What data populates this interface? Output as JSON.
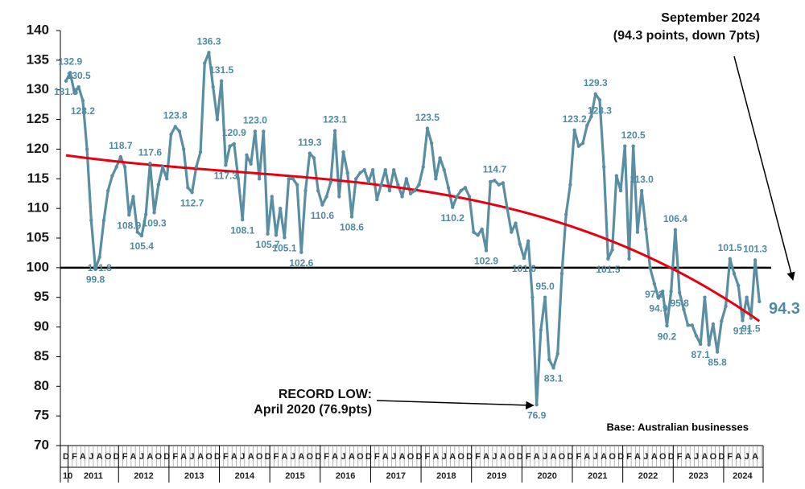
{
  "chart_data": {
    "type": "line",
    "annotations": {
      "latest": [
        "September 2024",
        "(94.3 points, down 7pts)"
      ],
      "record_low": [
        "RECORD LOW:",
        "April 2020 (76.9pts)"
      ],
      "base": "Base: Australian businesses"
    },
    "categories": [
      "D",
      null,
      "F",
      null,
      "A",
      null,
      "J",
      null,
      "A",
      null,
      "O",
      null,
      "D",
      null,
      "F",
      null,
      "A",
      null,
      "J",
      null,
      "A",
      null,
      "O",
      null,
      "D",
      null,
      "F",
      null,
      "A",
      null,
      "J",
      null,
      "A",
      null,
      "O",
      null,
      "D",
      null,
      "F",
      null,
      "A",
      null,
      "J",
      null,
      "A",
      null,
      "O",
      null,
      "D",
      null,
      "F",
      null,
      "A",
      null,
      "J",
      null,
      "A",
      null,
      "O",
      null,
      "D",
      null,
      "F",
      null,
      "A",
      null,
      "J",
      null,
      "A",
      null,
      "O",
      null,
      "D",
      null,
      "F",
      null,
      "A",
      null,
      "J",
      null,
      "A",
      null,
      "O",
      null,
      "D",
      null,
      "F",
      null,
      "A",
      null,
      "J",
      null,
      "A",
      null,
      "O",
      null,
      "D",
      null,
      "F",
      null,
      "A",
      null,
      "J",
      null,
      "A",
      null,
      "O",
      null,
      "D",
      null,
      "F",
      null,
      "A",
      null,
      "J",
      null,
      "A",
      null,
      "O",
      null,
      "D",
      null,
      "F",
      null,
      "A",
      null,
      "J",
      null,
      "A",
      null,
      "O",
      null,
      "D",
      null,
      "F",
      null,
      "A",
      null,
      "J",
      null,
      "A",
      null,
      "O",
      null,
      "D",
      null,
      "F",
      null,
      "A",
      null,
      "J",
      null,
      "A",
      null,
      "O",
      null,
      "D",
      null,
      "F",
      null,
      "A",
      null,
      "J",
      null,
      "A",
      null
    ],
    "year_labels": [
      "10",
      "2011",
      "2012",
      "2013",
      "2014",
      "2015",
      "2016",
      "2017",
      "2018",
      "2019",
      "2020",
      "2021",
      "2022",
      "2023",
      "2024"
    ],
    "values": [
      131.5,
      132.9,
      129.5,
      130.5,
      128.2,
      120,
      108,
      99.8,
      101.8,
      108,
      113,
      115.5,
      117,
      118.7,
      117,
      108.9,
      112,
      106,
      105.4,
      109,
      117.6,
      109.3,
      114,
      117,
      115,
      122.5,
      123.8,
      123,
      120,
      113.5,
      112.7,
      117,
      119.5,
      134.5,
      136.3,
      130.5,
      125,
      131.5,
      117.3,
      120.5,
      120.9,
      115,
      108.1,
      119,
      117.5,
      123,
      115,
      123,
      105.7,
      112,
      105.5,
      110,
      105.1,
      115,
      115,
      114,
      102.6,
      113,
      119.3,
      118.5,
      113,
      110.6,
      112,
      114.5,
      123.1,
      112,
      119.5,
      116,
      108.6,
      115,
      116,
      116.5,
      114.5,
      116.5,
      111.5,
      114,
      116.5,
      113,
      116.5,
      114,
      112,
      115,
      112.5,
      113,
      114,
      117,
      123.5,
      121,
      115,
      118.5,
      116.5,
      113.5,
      110.2,
      112,
      113,
      113.5,
      112,
      106,
      105.5,
      106.5,
      102.9,
      114.5,
      114.7,
      114,
      114.3,
      110,
      106,
      107.5,
      104,
      101.6,
      104.5,
      95,
      76.9,
      89.5,
      95,
      84.5,
      83.1,
      85.5,
      99,
      109,
      114,
      123.2,
      120.5,
      121,
      124,
      125.5,
      129.3,
      128.3,
      117,
      101.5,
      103,
      115.5,
      113,
      120.5,
      101.5,
      120.5,
      106,
      113,
      106.5,
      100,
      97.3,
      94.9,
      96,
      90.2,
      96,
      106.4,
      95.8,
      93,
      90.3,
      90.3,
      88.5,
      87.1,
      95,
      87,
      90.5,
      85.8,
      91,
      93.5,
      101.5,
      99,
      97,
      91.1,
      95,
      91.5,
      101.3,
      94.3
    ],
    "value_labels": [
      "131.5",
      "132.9",
      null,
      "130.5",
      "128.2",
      null,
      null,
      "99.8",
      "101.8",
      null,
      null,
      null,
      null,
      "118.7",
      null,
      "108.9",
      null,
      null,
      "105.4",
      null,
      "117.6",
      "109.3",
      null,
      null,
      null,
      null,
      "123.8",
      null,
      null,
      null,
      "112.7",
      null,
      null,
      null,
      "136.3",
      null,
      null,
      "131.5",
      "117.3",
      null,
      "120.9",
      null,
      "108.1",
      null,
      null,
      "123.0",
      null,
      null,
      "105.7",
      null,
      null,
      null,
      "105.1",
      null,
      null,
      null,
      "102.6",
      null,
      "119.3",
      null,
      null,
      "110.6",
      null,
      null,
      "123.1",
      null,
      null,
      null,
      "108.6",
      null,
      null,
      null,
      null,
      null,
      null,
      null,
      null,
      null,
      null,
      null,
      null,
      null,
      null,
      null,
      null,
      null,
      "123.5",
      null,
      null,
      null,
      null,
      null,
      "110.2",
      null,
      null,
      null,
      null,
      null,
      null,
      null,
      "102.9",
      null,
      "114.7",
      null,
      null,
      null,
      null,
      null,
      null,
      "101.6",
      null,
      null,
      "76.9",
      null,
      "95.0",
      null,
      "83.1",
      null,
      null,
      null,
      null,
      "123.2",
      null,
      null,
      null,
      null,
      "129.3",
      "128.3",
      null,
      "101.5",
      null,
      null,
      null,
      null,
      null,
      "120.5",
      null,
      "113.0",
      null,
      null,
      "97.3",
      "94.9",
      null,
      "90.2",
      null,
      "106.4",
      "95.8",
      null,
      null,
      null,
      null,
      "87.1",
      null,
      null,
      null,
      "85.8",
      null,
      null,
      "101.5",
      null,
      null,
      "91.1",
      null,
      "91.5",
      "101.3",
      "94.3"
    ],
    "color": "#5a8ea3",
    "trend_color": "#e60012",
    "trend": true,
    "reference_line": 100,
    "ylim": [
      70,
      140
    ],
    "yticks": [
      70,
      75,
      80,
      85,
      90,
      95,
      100,
      105,
      110,
      115,
      120,
      125,
      130,
      135,
      140
    ]
  }
}
